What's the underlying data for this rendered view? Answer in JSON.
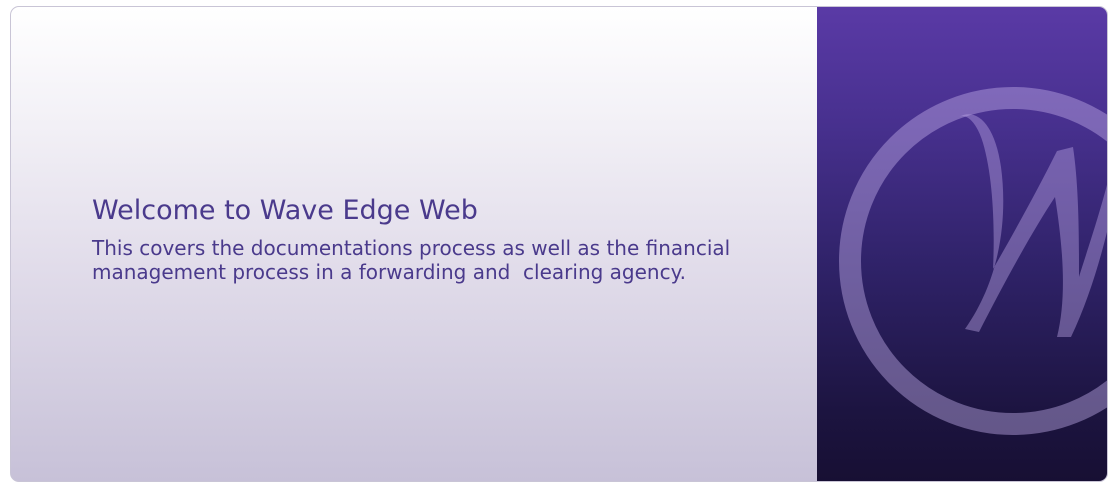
{
  "welcome": {
    "title": "Welcome to Wave Edge Web",
    "description_line1": "This covers the documentations process as well as the financial",
    "description_line2": "management process in a forwarding and  clearing agency."
  },
  "brand": {
    "logo_icon": "w-circle-logo-icon",
    "panel_color": "#4a3496",
    "text_color": "#4a3a8c"
  }
}
